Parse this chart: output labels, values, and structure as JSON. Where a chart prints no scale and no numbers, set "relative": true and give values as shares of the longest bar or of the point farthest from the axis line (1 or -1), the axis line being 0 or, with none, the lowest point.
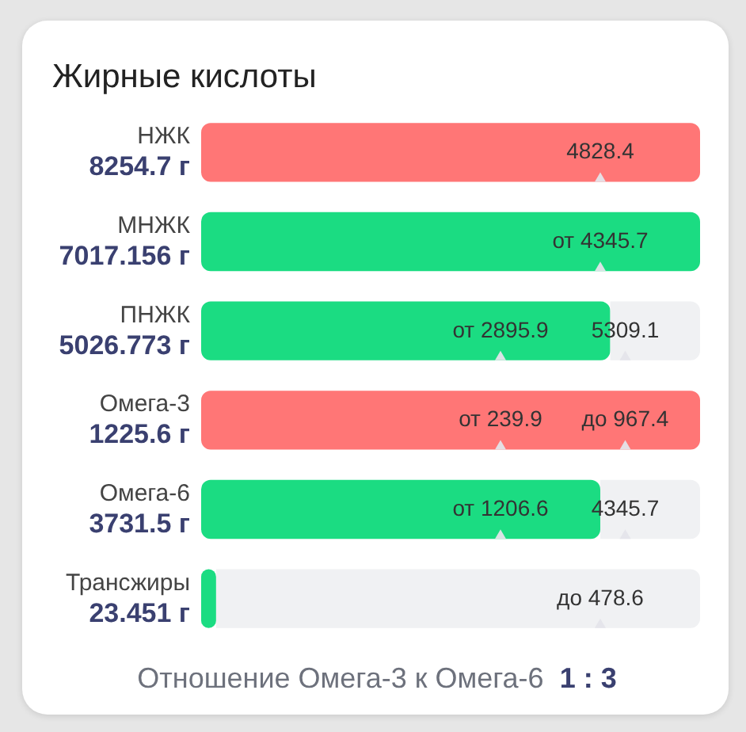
{
  "chart_data": {
    "type": "bar",
    "orientation": "horizontal",
    "stacked": true,
    "relative": true,
    "title": "Жирные кислоты",
    "categories": [
      "НЖК\n8254.7 г",
      "МНЖК\n7017.156 г",
      "ПНЖК\n5026.773 г",
      "Омега-3\n1225.6 г",
      "Омега-6\n3731.5 г",
      "Трансжиры\n23.451 г"
    ],
    "series": [
      {
        "colors": [
          "#ff7676",
          "#1bdc82",
          "#1bdc82",
          "#ff7676",
          "#1bdc82",
          "#1bdc82"
        ],
        "values": [
          1,
          1,
          0.82,
          1,
          0.8,
          0.03
        ]
      },
      {
        "color": "#f0f1f3",
        "values": [
          null,
          null,
          0.18,
          null,
          0.2,
          0.97
        ]
      }
    ],
    "annotations": [
      "4828.4",
      "от 4345.7",
      "от 2895.9",
      "5309.1",
      "от 239.9",
      "до 967.4",
      "от 1206.6",
      "4345.7",
      "до 478.6",
      "Отношение Омега-3 к Омега-6",
      "1 : 3"
    ]
  }
}
